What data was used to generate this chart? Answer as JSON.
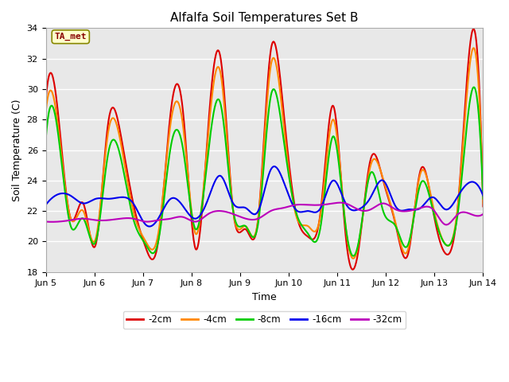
{
  "title": "Alfalfa Soil Temperatures Set B",
  "xlabel": "Time",
  "ylabel": "Soil Temperature (C)",
  "ylim": [
    18,
    34
  ],
  "xlim": [
    0,
    9
  ],
  "x_tick_labels": [
    "Jun 5",
    "Jun 6",
    "Jun 7",
    "Jun 8",
    "Jun 9",
    "Jun 10",
    "Jun 11",
    "Jun 12",
    "Jun 13",
    "Jun 14"
  ],
  "colors": {
    "-2cm": "#dd0000",
    "-4cm": "#ff8800",
    "-8cm": "#00cc00",
    "-16cm": "#0000ee",
    "-32cm": "#bb00bb"
  },
  "annotation_box": "TA_met",
  "annotation_color": "#880000",
  "figure_bg": "#ffffff",
  "axes_bg": "#e8e8e8",
  "grid_color": "#ffffff",
  "series_pts_per_day": 4,
  "series": {
    "-2cm": [
      29.3,
      28.3,
      21.5,
      22.5,
      19.8,
      27.8,
      27.0,
      22.5,
      19.6,
      20.0,
      28.5,
      28.4,
      19.5,
      27.5,
      32.0,
      22.0,
      20.8,
      21.5,
      32.5,
      28.8,
      22.0,
      20.3,
      22.0,
      28.9,
      20.4,
      19.3,
      25.4,
      24.0,
      21.1,
      19.2,
      24.7,
      22.0,
      19.2,
      22.5,
      33.2,
      22.3
    ],
    "-4cm": [
      28.5,
      27.5,
      21.5,
      22.0,
      20.2,
      27.2,
      26.5,
      22.0,
      20.0,
      20.5,
      27.8,
      27.5,
      20.5,
      27.0,
      31.0,
      22.0,
      21.0,
      21.5,
      31.5,
      28.0,
      21.8,
      21.0,
      21.8,
      28.0,
      21.0,
      19.7,
      25.0,
      24.1,
      21.2,
      19.5,
      24.5,
      22.3,
      19.8,
      22.5,
      32.0,
      22.5
    ],
    "-8cm": [
      26.7,
      27.0,
      21.0,
      21.5,
      20.0,
      25.8,
      25.5,
      21.5,
      19.8,
      20.0,
      26.2,
      26.0,
      20.8,
      25.8,
      29.0,
      22.0,
      21.0,
      21.2,
      29.5,
      26.9,
      22.0,
      20.5,
      21.0,
      26.9,
      21.0,
      19.8,
      24.5,
      22.0,
      21.0,
      19.8,
      23.8,
      22.0,
      19.8,
      22.0,
      29.5,
      22.8
    ],
    "-16cm": [
      22.4,
      23.1,
      23.0,
      22.5,
      22.8,
      22.8,
      22.9,
      22.5,
      21.1,
      21.5,
      22.8,
      22.3,
      21.5,
      22.8,
      24.3,
      22.5,
      22.2,
      22.0,
      24.7,
      24.0,
      22.1,
      22.0,
      22.2,
      24.0,
      22.5,
      22.1,
      22.9,
      24.0,
      22.3,
      22.1,
      22.2,
      22.9,
      22.1,
      23.0,
      23.9,
      23.0
    ],
    "-32cm": [
      21.3,
      21.3,
      21.4,
      21.5,
      21.4,
      21.4,
      21.5,
      21.5,
      21.3,
      21.4,
      21.5,
      21.6,
      21.3,
      21.8,
      22.0,
      21.8,
      21.5,
      21.5,
      22.0,
      22.2,
      22.4,
      22.4,
      22.4,
      22.5,
      22.5,
      22.1,
      22.1,
      22.5,
      22.1,
      22.0,
      22.2,
      22.1,
      21.1,
      21.8,
      21.8,
      21.8
    ]
  }
}
